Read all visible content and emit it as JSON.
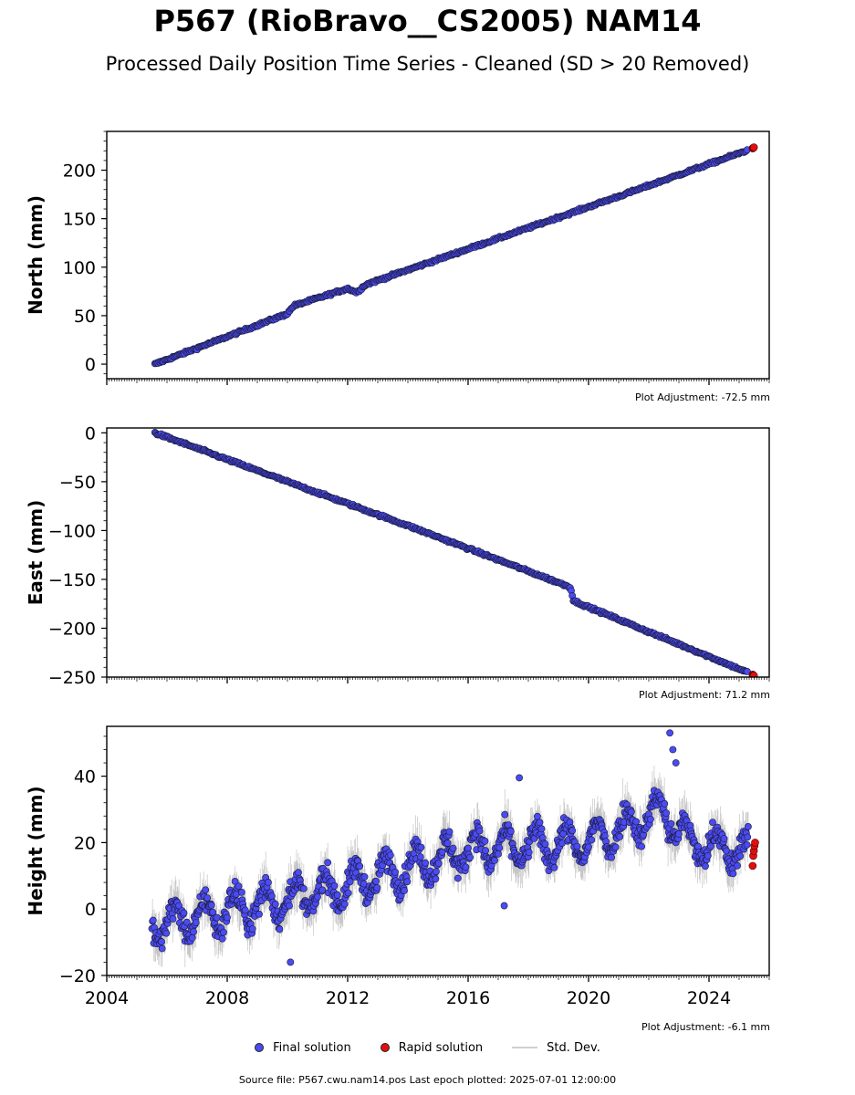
{
  "header": {
    "title": "P567 (RioBravo__CS2005) NAM14",
    "subtitle": "Processed Daily Position Time Series - Cleaned (SD > 20 Removed)"
  },
  "legend": {
    "final": "Final solution",
    "rapid": "Rapid solution",
    "stddev": "Std. Dev."
  },
  "footer": {
    "source": "Source file: P567.cwu.nam14.pos  Last epoch plotted: 2025-07-01 12:00:00"
  },
  "colors": {
    "final": "#4b4bf2",
    "rapid": "#e01010",
    "stddev": "#b8b8b8",
    "edge": "#1a1a3a"
  },
  "chart_data": [
    {
      "type": "scatter",
      "ylabel": "North (mm)",
      "adjustment": "Plot Adjustment: -72.5 mm",
      "xlim": [
        2004,
        2026
      ],
      "ylim": [
        -15,
        240
      ],
      "yticks": [
        0,
        50,
        100,
        150,
        200
      ],
      "x_start": 2005.6,
      "x_end_final": 2025.3,
      "x_end": 2025.5,
      "trend_points": [
        [
          2005.6,
          0
        ],
        [
          2010.0,
          52
        ],
        [
          2010.2,
          60
        ],
        [
          2012.0,
          78
        ],
        [
          2012.3,
          74
        ],
        [
          2012.6,
          82
        ],
        [
          2021.0,
          173
        ],
        [
          2025.5,
          223
        ]
      ],
      "noise": 1.5,
      "series": [
        {
          "name": "Final solution",
          "values": "trend",
          "color": "#4b4bf2"
        },
        {
          "name": "Rapid solution",
          "values": [
            222.5,
            223.0,
            223.5
          ],
          "color": "#e01010"
        }
      ]
    },
    {
      "type": "scatter",
      "ylabel": "East (mm)",
      "adjustment": "Plot Adjustment: 71.2 mm",
      "xlim": [
        2004,
        2026
      ],
      "ylim": [
        -250,
        5
      ],
      "yticks": [
        0,
        -50,
        -100,
        -150,
        -200,
        -250
      ],
      "x_start": 2005.6,
      "x_end_final": 2025.3,
      "x_end": 2025.5,
      "trend_points": [
        [
          2005.6,
          0
        ],
        [
          2010.0,
          -50
        ],
        [
          2014.0,
          -95
        ],
        [
          2019.4,
          -158
        ],
        [
          2019.5,
          -172
        ],
        [
          2025.5,
          -248
        ]
      ],
      "noise": 1.5,
      "series": [
        {
          "name": "Final solution",
          "values": "trend",
          "color": "#4b4bf2"
        },
        {
          "name": "Rapid solution",
          "values": [
            -247.5,
            -248.0,
            -248.5
          ],
          "color": "#e01010"
        }
      ]
    },
    {
      "type": "scatter",
      "ylabel": "Height (mm)",
      "adjustment": "Plot Adjustment: -6.1 mm",
      "xlim": [
        2004,
        2026
      ],
      "ylim": [
        -20,
        55
      ],
      "yticks": [
        -20,
        0,
        20,
        40
      ],
      "xticks": [
        2004,
        2008,
        2012,
        2016,
        2020,
        2024
      ],
      "x_start": 2005.5,
      "x_end_final": 2025.3,
      "x_end": 2025.5,
      "trend_points": [
        [
          2005.5,
          -5
        ],
        [
          2009.5,
          2
        ],
        [
          2012.0,
          7
        ],
        [
          2016.0,
          18
        ],
        [
          2020.0,
          20
        ],
        [
          2022.5,
          30
        ],
        [
          2023.3,
          20
        ],
        [
          2025.5,
          17
        ]
      ],
      "noise": 5,
      "outliers": [
        [
          2022.7,
          53
        ],
        [
          2022.8,
          48
        ],
        [
          2022.9,
          44
        ],
        [
          2017.7,
          39.5
        ],
        [
          2017.2,
          1
        ],
        [
          2010.1,
          -16
        ]
      ],
      "series": [
        {
          "name": "Final solution",
          "values": "trend",
          "color": "#4b4bf2"
        },
        {
          "name": "Rapid solution",
          "values": [
            13,
            16,
            17.5,
            19,
            20
          ],
          "color": "#e01010"
        }
      ]
    }
  ]
}
